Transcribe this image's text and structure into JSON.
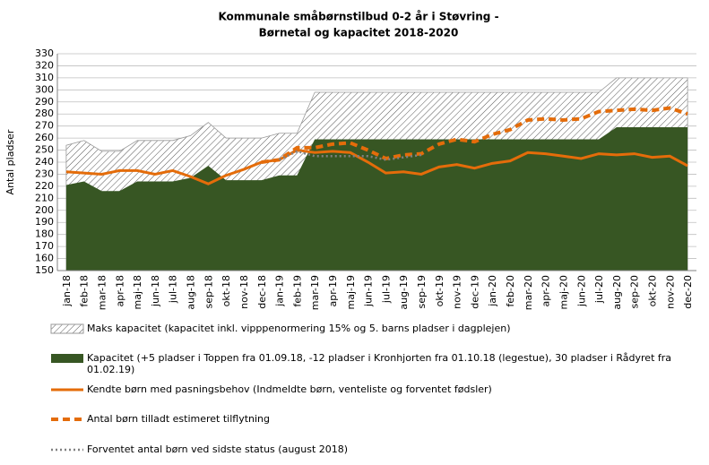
{
  "chart_data": {
    "type": "line",
    "title": "Kommunale småbørnstilbud 0-2 år i Støvring -",
    "subtitle": "Børnetal og kapacitet 2018-2020",
    "y_label": "Antal pladser",
    "categories": [
      "jan-18",
      "feb-18",
      "mar-18",
      "apr-18",
      "maj-18",
      "jun-18",
      "jul-18",
      "aug-18",
      "sep-18",
      "okt-18",
      "nov-18",
      "dec-18",
      "jan-19",
      "feb-19",
      "mar-19",
      "apr-19",
      "maj-19",
      "jun-19",
      "jul-19",
      "aug-19",
      "sep-19",
      "okt-19",
      "nov-19",
      "dec-19",
      "jan-20",
      "feb-20",
      "mar-20",
      "apr-20",
      "maj-20",
      "jun-20",
      "jul-20",
      "aug-20",
      "sep-20",
      "okt-20",
      "nov-20",
      "dec-20"
    ],
    "ylim": [
      150,
      330
    ],
    "yticks": [
      150,
      160,
      170,
      180,
      190,
      200,
      210,
      220,
      230,
      240,
      250,
      260,
      270,
      280,
      290,
      300,
      310,
      320,
      330
    ],
    "grid": true,
    "series": [
      {
        "name": "Maks kapacitet (kapacitet inkl. vipppenormering 15% og 5. barns pladser i dagplejen)",
        "type": "area",
        "pattern": "hatch",
        "color": "#555555",
        "values": [
          254,
          258,
          249,
          249,
          258,
          258,
          258,
          262,
          273,
          260,
          260,
          260,
          264,
          264,
          298,
          298,
          298,
          298,
          298,
          298,
          298,
          298,
          298,
          298,
          298,
          298,
          298,
          298,
          298,
          298,
          298,
          310,
          310,
          310,
          310,
          310
        ]
      },
      {
        "name": "Kapacitet (+5 pladser i Toppen fra 01.09.18, -12 pladser i Kronhjorten fra 01.10.18 (legestue), 30 pladser i Rådyret fra 01.02.19)",
        "type": "area",
        "color": "#375623",
        "values": [
          221,
          224,
          216,
          216,
          224,
          224,
          224,
          227,
          237,
          225,
          225,
          225,
          229,
          229,
          259,
          259,
          259,
          259,
          259,
          259,
          259,
          259,
          259,
          259,
          259,
          259,
          259,
          259,
          259,
          259,
          259,
          269,
          269,
          269,
          269,
          269
        ]
      },
      {
        "name": "Kendte børn med pasningsbehov (Indmeldte børn, venteliste og forventet fødsler)",
        "type": "line",
        "dash": "solid",
        "color": "#e46c0a",
        "values": [
          232,
          231,
          230,
          233,
          233,
          230,
          233,
          228,
          222,
          229,
          234,
          240,
          242,
          250,
          248,
          249,
          248,
          240,
          231,
          232,
          230,
          236,
          238,
          235,
          239,
          241,
          248,
          247,
          245,
          243,
          247,
          246,
          247,
          244,
          245,
          237
        ]
      },
      {
        "name": "Antal børn tilladt estimeret tilflytning",
        "type": "line",
        "dash": "dashed",
        "color": "#e46c0a",
        "values": [
          null,
          null,
          null,
          null,
          null,
          null,
          null,
          null,
          null,
          null,
          null,
          240,
          242,
          252,
          252,
          255,
          256,
          250,
          243,
          246,
          247,
          255,
          259,
          257,
          263,
          267,
          275,
          276,
          275,
          276,
          282,
          283,
          284,
          283,
          285,
          280
        ]
      },
      {
        "name": "Forventet antal børn ved sidste status (august 2018)",
        "type": "line",
        "dash": "dotted",
        "color": "#808080",
        "values": [
          null,
          null,
          null,
          null,
          null,
          null,
          null,
          null,
          null,
          null,
          null,
          null,
          242,
          249,
          245,
          245,
          245,
          245,
          242,
          244,
          246,
          null,
          null,
          null,
          null,
          null,
          null,
          null,
          null,
          null,
          null,
          null,
          null,
          null,
          null,
          null
        ]
      }
    ]
  }
}
